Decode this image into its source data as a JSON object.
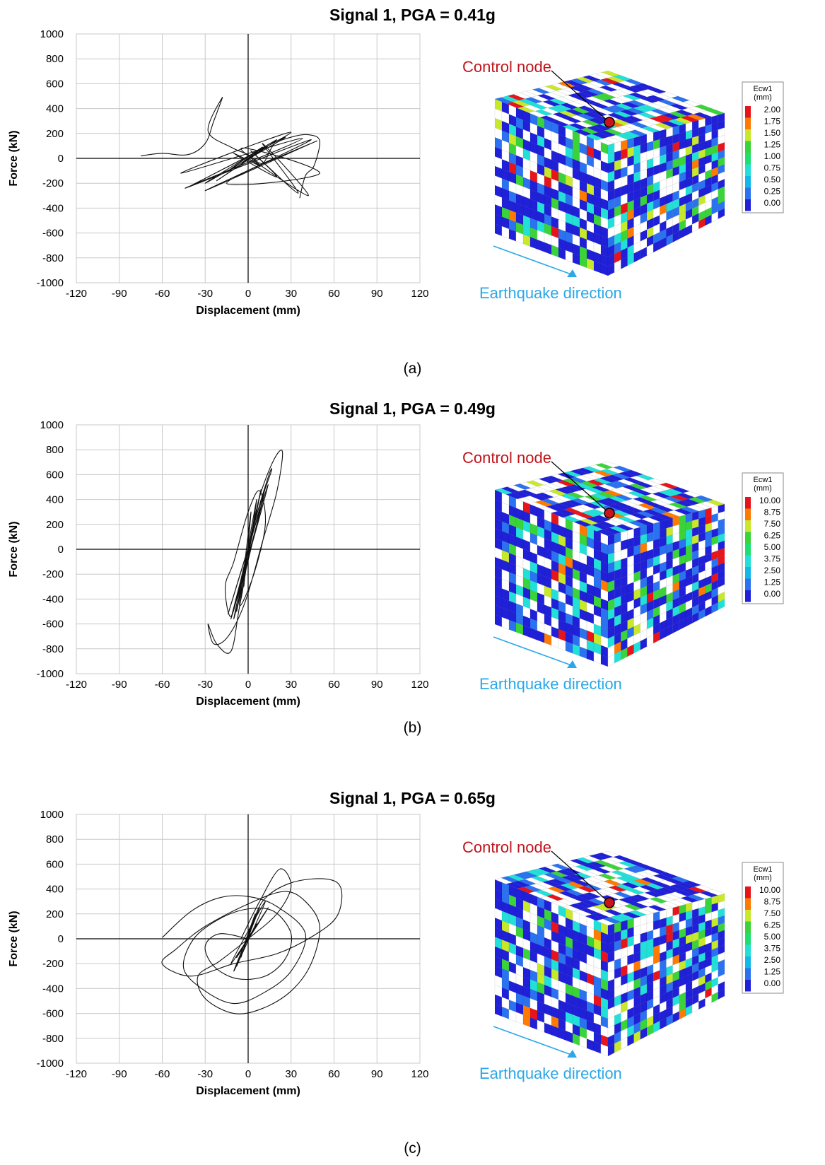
{
  "chart_data": [
    {
      "type": "line",
      "label": "(a)",
      "title": "Signal 1, PGA = 0.41g",
      "xlabel": "Displacement (mm)",
      "ylabel": "Force (kN)",
      "xlim": [
        -120,
        120
      ],
      "ylim": [
        -1000,
        1000
      ],
      "xticks": [
        "-120",
        "-90",
        "-60",
        "-30",
        "0",
        "30",
        "60",
        "90",
        "120"
      ],
      "yticks": [
        "1000",
        "800",
        "600",
        "400",
        "200",
        "0",
        "-200",
        "-400",
        "-600",
        "-800",
        "-1000"
      ],
      "grid": true,
      "series": [
        {
          "x": [
            0,
            3,
            -4,
            6,
            -8,
            10,
            -15,
            14,
            -22,
            20,
            -30,
            26,
            -40,
            30,
            -47,
            38,
            -44,
            44,
            -30,
            48,
            -15,
            50,
            -5,
            42,
            10,
            35,
            2,
            20,
            -10,
            8,
            0
          ],
          "y": [
            0,
            30,
            -40,
            60,
            -80,
            90,
            -110,
            100,
            -180,
            150,
            -200,
            170,
            -220,
            210,
            -120,
            160,
            -240,
            150,
            -260,
            140,
            -200,
            -120,
            80,
            -300,
            120,
            -280,
            60,
            -150,
            40,
            -60,
            0
          ]
        },
        {
          "x": [
            -75,
            -60,
            -42,
            -30,
            -24,
            -18,
            -28,
            -12,
            0,
            10,
            18,
            30,
            42,
            50,
            46,
            40,
            36
          ],
          "y": [
            20,
            40,
            30,
            120,
            300,
            490,
            220,
            90,
            30,
            -40,
            110,
            170,
            190,
            140,
            -60,
            -140,
            -320
          ]
        }
      ],
      "structure": {
        "annotation": "Control node",
        "direction": "Earthquake direction",
        "legend_title": [
          "Ecw1",
          "(mm)"
        ],
        "legend_values": [
          "2.00",
          "1.75",
          "1.50",
          "1.25",
          "1.00",
          "0.75",
          "0.50",
          "0.25",
          "0.00"
        ]
      }
    },
    {
      "type": "line",
      "label": "(b)",
      "title": "Signal 1, PGA = 0.49g",
      "xlabel": "Displacement (mm)",
      "ylabel": "Force (kN)",
      "xlim": [
        -120,
        120
      ],
      "ylim": [
        -1000,
        1000
      ],
      "xticks": [
        "-120",
        "-90",
        "-60",
        "-30",
        "0",
        "30",
        "60",
        "90",
        "120"
      ],
      "yticks": [
        "1000",
        "800",
        "600",
        "400",
        "200",
        "0",
        "-200",
        "-400",
        "-600",
        "-800",
        "-1000"
      ],
      "grid": true,
      "series": [
        {
          "x": [
            0,
            8,
            18,
            24,
            20,
            10,
            -2,
            -14,
            -24,
            -28,
            -22,
            -12,
            -6,
            4,
            14,
            16,
            6,
            -4,
            -12,
            -16,
            -10,
            0,
            8,
            12,
            4,
            -6,
            0
          ],
          "y": [
            0,
            420,
            720,
            780,
            460,
            60,
            -420,
            -700,
            -760,
            -600,
            -760,
            -820,
            -460,
            180,
            580,
            620,
            280,
            -200,
            -540,
            -300,
            -100,
            300,
            470,
            200,
            -200,
            -450,
            0
          ]
        },
        {
          "x": [
            -3,
            2,
            -5,
            6,
            -8,
            9,
            -10,
            12,
            -12,
            14,
            -14,
            10,
            -6,
            3,
            0
          ],
          "y": [
            -300,
            300,
            -400,
            400,
            -500,
            480,
            -560,
            500,
            -560,
            520,
            -520,
            380,
            -300,
            150,
            0
          ]
        }
      ],
      "structure": {
        "annotation": "Control node",
        "direction": "Earthquake direction",
        "legend_title": [
          "Ecw1",
          "(mm)"
        ],
        "legend_values": [
          "10.00",
          "8.75",
          "7.50",
          "6.25",
          "5.00",
          "3.75",
          "2.50",
          "1.25",
          "0.00"
        ]
      }
    },
    {
      "type": "line",
      "label": "(c)",
      "title": "Signal 1, PGA = 0.65g",
      "xlabel": "Displacement (mm)",
      "ylabel": "Force (kN)",
      "xlim": [
        -120,
        120
      ],
      "ylim": [
        -1000,
        1000
      ],
      "xticks": [
        "-120",
        "-90",
        "-60",
        "-30",
        "0",
        "30",
        "60",
        "90",
        "120"
      ],
      "yticks": [
        "1000",
        "800",
        "600",
        "400",
        "200",
        "0",
        "-200",
        "-400",
        "-600",
        "-800",
        "-1000"
      ],
      "grid": true,
      "series": [
        {
          "x": [
            0,
            10,
            30,
            55,
            65,
            62,
            45,
            20,
            -10,
            -40,
            -60,
            -50,
            -30,
            0,
            25,
            40,
            50,
            44,
            30,
            10,
            -10,
            -30,
            -35,
            -20,
            0,
            20,
            30,
            22,
            8,
            -5
          ],
          "y": [
            0,
            300,
            450,
            480,
            400,
            180,
            20,
            -120,
            -200,
            -300,
            -200,
            -80,
            100,
            280,
            380,
            300,
            100,
            -200,
            -420,
            -560,
            -600,
            -480,
            -300,
            -180,
            0,
            200,
            420,
            560,
            300,
            0
          ]
        },
        {
          "x": [
            -60,
            -40,
            -20,
            0,
            20,
            40,
            30,
            10,
            -10,
            -30,
            -45,
            -38,
            -20,
            0,
            18,
            30,
            26,
            12,
            -8,
            -24,
            -30,
            -20,
            0
          ],
          "y": [
            10,
            220,
            330,
            340,
            260,
            40,
            -260,
            -440,
            -520,
            -420,
            -240,
            0,
            160,
            240,
            220,
            40,
            -160,
            -300,
            -320,
            -220,
            -60,
            40,
            0
          ]
        },
        {
          "x": [
            -5,
            5,
            -8,
            8,
            -10,
            12,
            -12,
            14,
            -8,
            6,
            -4,
            3,
            0
          ],
          "y": [
            -150,
            200,
            -220,
            250,
            -260,
            300,
            -200,
            250,
            -150,
            120,
            -80,
            60,
            0
          ]
        }
      ],
      "structure": {
        "annotation": "Control node",
        "direction": "Earthquake direction",
        "legend_title": [
          "Ecw1",
          "(mm)"
        ],
        "legend_values": [
          "10.00",
          "8.75",
          "7.50",
          "6.25",
          "5.00",
          "3.75",
          "2.50",
          "1.25",
          "0.00"
        ]
      }
    }
  ],
  "colors": {
    "legend_scale": [
      "#e8141c",
      "#ff7a00",
      "#c8e82a",
      "#3ad43a",
      "#1ee070",
      "#22e0d8",
      "#12b8e8",
      "#2a72f0",
      "#2020d8"
    ],
    "annotation": "#c0141c",
    "direction": "#2aa8e8",
    "mesh": [
      "#2020d8",
      "#2a72f0",
      "#22e0d8",
      "#3ad43a",
      "#c8e82a",
      "#ff7a00",
      "#e8141c"
    ]
  }
}
